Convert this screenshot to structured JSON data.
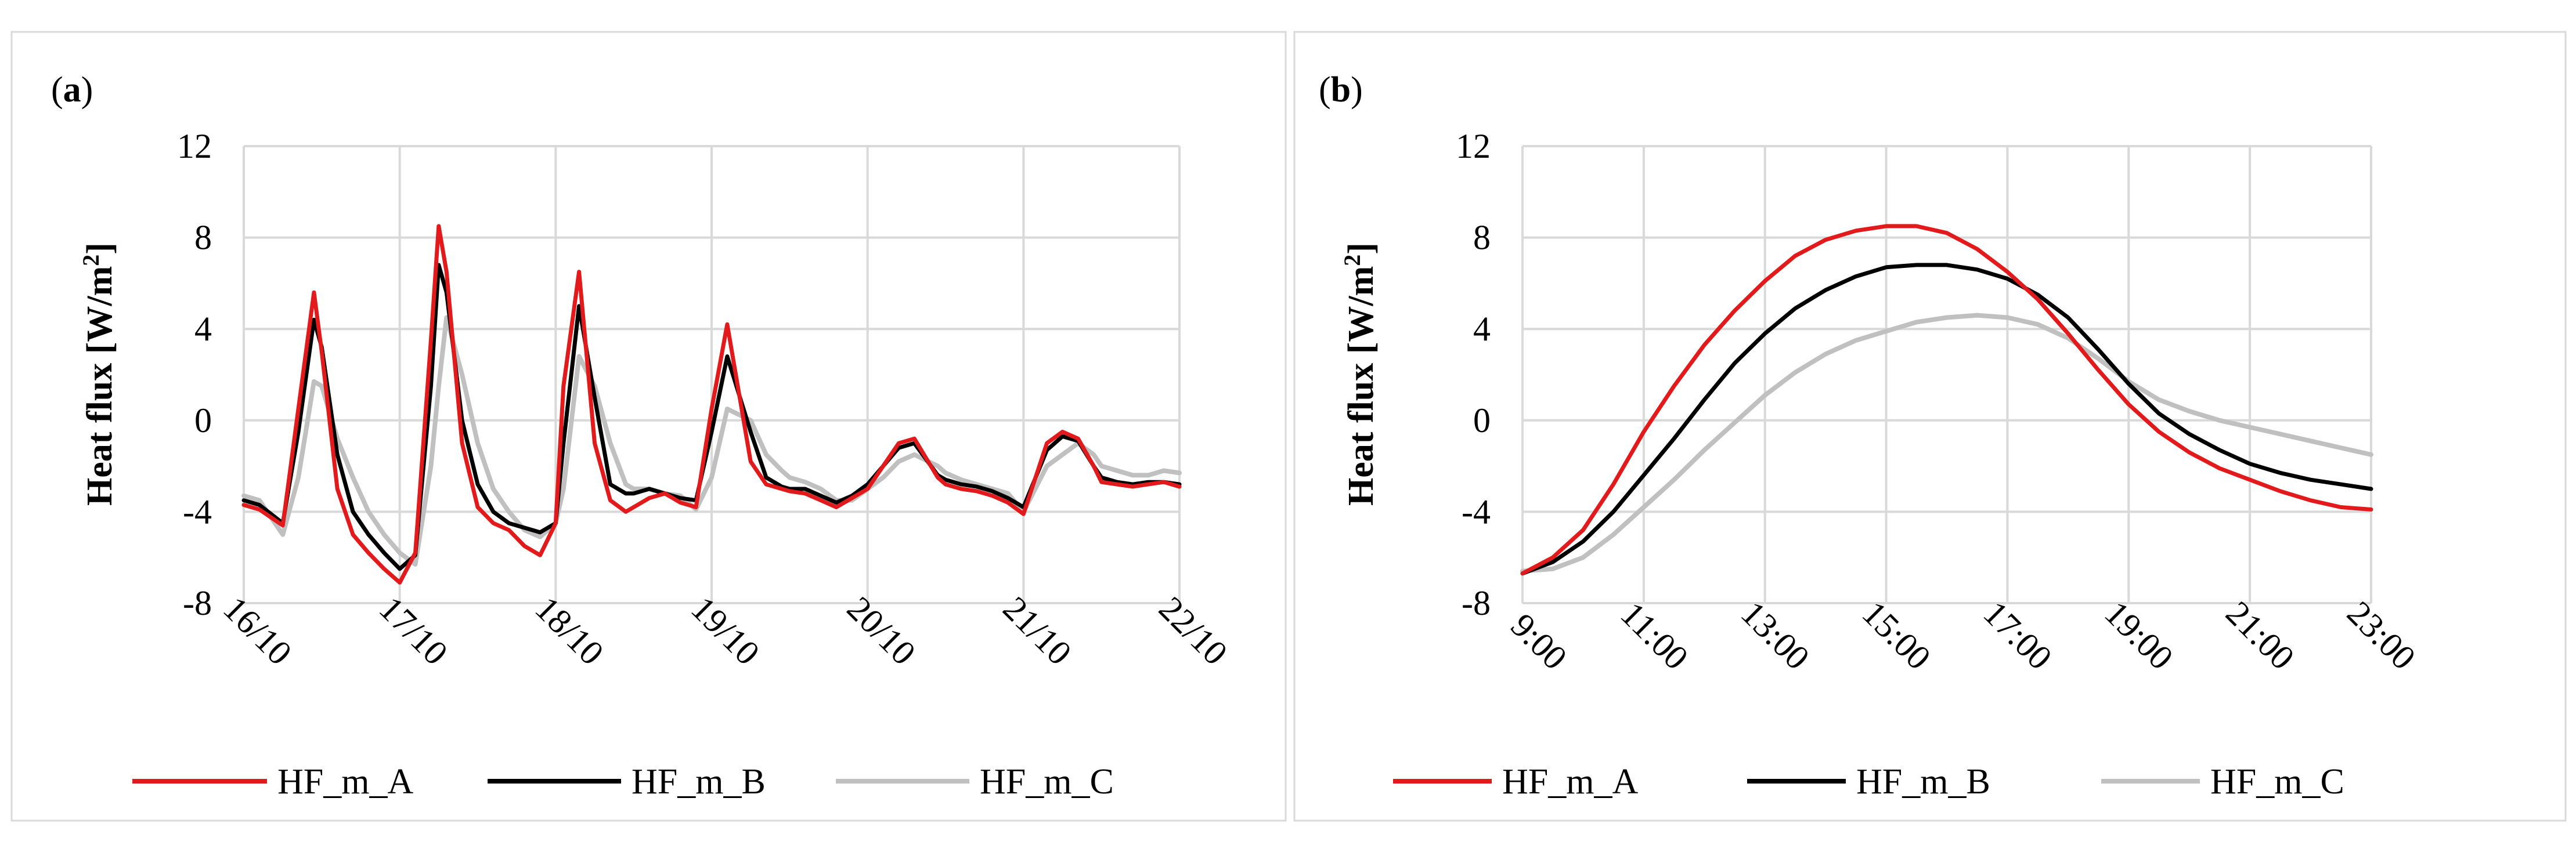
{
  "panels": [
    {
      "label": "(a)",
      "label_letter": "a",
      "ylabel": "Heat flux [W/m²]",
      "ylabel_main": "Heat flux [W/m",
      "ylabel_sup": "2",
      "ylabel_end": "]"
    },
    {
      "label": "(b)",
      "label_letter": "b",
      "ylabel": "Heat flux [W/m²]",
      "ylabel_main": "Heat flux [W/m",
      "ylabel_sup": "2",
      "ylabel_end": "]"
    }
  ],
  "colors": {
    "HF_m_A": "#e31a1c",
    "HF_m_B": "#000000",
    "HF_m_C": "#c0c0c0"
  },
  "chart_data": [
    {
      "type": "line",
      "title": "(a)",
      "xlabel": "",
      "ylabel": "Heat flux [W/m²]",
      "ylim": [
        -8,
        12
      ],
      "yticks": [
        -8,
        -4,
        0,
        4,
        8,
        12
      ],
      "xlim": [
        0,
        6
      ],
      "xtick_labels": [
        "16/10",
        "17/10",
        "18/10",
        "19/10",
        "20/10",
        "21/10",
        "22/10"
      ],
      "grid": true,
      "legend": "bottom",
      "series": [
        {
          "name": "HF_m_A",
          "x": [
            0,
            0.1,
            0.25,
            0.35,
            0.45,
            0.5,
            0.6,
            0.7,
            0.8,
            0.9,
            1.0,
            1.1,
            1.2,
            1.25,
            1.3,
            1.4,
            1.5,
            1.6,
            1.7,
            1.8,
            1.9,
            2.0,
            2.05,
            2.15,
            2.25,
            2.35,
            2.45,
            2.5,
            2.6,
            2.7,
            2.8,
            2.9,
            3.0,
            3.1,
            3.25,
            3.35,
            3.45,
            3.5,
            3.6,
            3.7,
            3.8,
            3.9,
            4.0,
            4.1,
            4.2,
            4.3,
            4.45,
            4.5,
            4.6,
            4.7,
            4.8,
            4.9,
            5.0,
            5.15,
            5.25,
            5.35,
            5.45,
            5.5,
            5.6,
            5.7,
            5.8,
            5.9,
            6.0
          ],
          "y": [
            -3.7,
            -3.9,
            -4.6,
            0.5,
            5.6,
            3.0,
            -3.0,
            -5.0,
            -5.8,
            -6.5,
            -7.1,
            -5.8,
            3.5,
            8.5,
            6.5,
            -1.0,
            -3.8,
            -4.5,
            -4.8,
            -5.5,
            -5.9,
            -4.5,
            1.5,
            6.5,
            -1.0,
            -3.5,
            -4.0,
            -3.8,
            -3.4,
            -3.2,
            -3.6,
            -3.8,
            0.5,
            4.2,
            -1.8,
            -2.8,
            -3.0,
            -3.1,
            -3.2,
            -3.5,
            -3.8,
            -3.4,
            -3.0,
            -2.0,
            -1.0,
            -0.8,
            -2.5,
            -2.8,
            -3.0,
            -3.1,
            -3.3,
            -3.6,
            -4.1,
            -1.0,
            -0.5,
            -0.8,
            -2.0,
            -2.7,
            -2.8,
            -2.9,
            -2.8,
            -2.7,
            -2.9
          ]
        },
        {
          "name": "HF_m_B",
          "x": [
            0,
            0.1,
            0.25,
            0.35,
            0.45,
            0.5,
            0.6,
            0.7,
            0.8,
            0.9,
            1.0,
            1.1,
            1.2,
            1.25,
            1.3,
            1.4,
            1.5,
            1.6,
            1.7,
            1.8,
            1.9,
            2.0,
            2.05,
            2.15,
            2.25,
            2.35,
            2.45,
            2.5,
            2.6,
            2.7,
            2.8,
            2.9,
            3.0,
            3.1,
            3.25,
            3.35,
            3.45,
            3.5,
            3.6,
            3.7,
            3.8,
            3.9,
            4.0,
            4.1,
            4.2,
            4.3,
            4.45,
            4.5,
            4.6,
            4.7,
            4.8,
            4.9,
            5.0,
            5.15,
            5.25,
            5.35,
            5.45,
            5.5,
            5.6,
            5.7,
            5.8,
            5.9,
            6.0
          ],
          "y": [
            -3.5,
            -3.7,
            -4.5,
            -0.5,
            4.4,
            3.2,
            -1.5,
            -4.0,
            -5.0,
            -5.8,
            -6.5,
            -5.9,
            1.5,
            6.8,
            5.6,
            0.0,
            -2.8,
            -4.0,
            -4.5,
            -4.7,
            -4.9,
            -4.5,
            -1.0,
            5.0,
            1.0,
            -2.8,
            -3.2,
            -3.2,
            -3.0,
            -3.2,
            -3.4,
            -3.5,
            -0.5,
            2.8,
            -0.5,
            -2.5,
            -2.9,
            -3.0,
            -3.0,
            -3.3,
            -3.6,
            -3.3,
            -2.8,
            -2.0,
            -1.2,
            -1.0,
            -2.4,
            -2.6,
            -2.8,
            -2.9,
            -3.1,
            -3.4,
            -3.8,
            -1.3,
            -0.7,
            -0.9,
            -2.0,
            -2.5,
            -2.7,
            -2.8,
            -2.7,
            -2.7,
            -2.8
          ]
        },
        {
          "name": "HF_m_C",
          "x": [
            0,
            0.1,
            0.25,
            0.35,
            0.45,
            0.5,
            0.6,
            0.7,
            0.8,
            0.9,
            1.0,
            1.1,
            1.2,
            1.25,
            1.3,
            1.4,
            1.5,
            1.6,
            1.7,
            1.8,
            1.9,
            2.0,
            2.05,
            2.15,
            2.25,
            2.35,
            2.45,
            2.5,
            2.6,
            2.7,
            2.8,
            2.9,
            3.0,
            3.1,
            3.25,
            3.35,
            3.45,
            3.5,
            3.6,
            3.7,
            3.8,
            3.9,
            4.0,
            4.1,
            4.2,
            4.3,
            4.45,
            4.5,
            4.6,
            4.7,
            4.8,
            4.9,
            5.0,
            5.15,
            5.25,
            5.35,
            5.45,
            5.5,
            5.6,
            5.7,
            5.8,
            5.9,
            6.0
          ],
          "y": [
            -3.3,
            -3.5,
            -5.0,
            -2.5,
            1.7,
            1.5,
            -0.8,
            -2.5,
            -4.0,
            -5.0,
            -5.8,
            -6.3,
            -2.0,
            1.5,
            4.5,
            2.0,
            -1.0,
            -3.0,
            -4.0,
            -4.8,
            -5.1,
            -4.5,
            -3.0,
            2.8,
            1.5,
            -1.0,
            -2.8,
            -3.0,
            -3.0,
            -3.2,
            -3.3,
            -3.9,
            -2.5,
            0.5,
            0.0,
            -1.5,
            -2.2,
            -2.5,
            -2.7,
            -3.0,
            -3.5,
            -3.5,
            -3.0,
            -2.5,
            -1.8,
            -1.5,
            -2.0,
            -2.3,
            -2.6,
            -2.8,
            -3.0,
            -3.2,
            -4.0,
            -2.0,
            -1.5,
            -1.0,
            -1.5,
            -2.0,
            -2.2,
            -2.4,
            -2.4,
            -2.2,
            -2.3
          ]
        }
      ]
    },
    {
      "type": "line",
      "title": "(b)",
      "xlabel": "",
      "ylabel": "Heat flux [W/m²]",
      "ylim": [
        -8,
        12
      ],
      "yticks": [
        -8,
        -4,
        0,
        4,
        8,
        12
      ],
      "xlim": [
        9,
        23
      ],
      "xtick_values": [
        9,
        11,
        13,
        15,
        17,
        19,
        21,
        23
      ],
      "xtick_labels": [
        "9:00",
        "11:00",
        "13:00",
        "15:00",
        "17:00",
        "19:00",
        "21:00",
        "23:00"
      ],
      "grid": true,
      "legend": "bottom",
      "series": [
        {
          "name": "HF_m_A",
          "x": [
            9.0,
            9.5,
            10.0,
            10.5,
            11.0,
            11.5,
            12.0,
            12.5,
            13.0,
            13.5,
            14.0,
            14.5,
            15.0,
            15.5,
            16.0,
            16.5,
            17.0,
            17.5,
            18.0,
            18.5,
            19.0,
            19.5,
            20.0,
            20.5,
            21.0,
            21.5,
            22.0,
            22.5,
            23.0
          ],
          "y": [
            -6.7,
            -6.0,
            -4.8,
            -2.8,
            -0.5,
            1.5,
            3.3,
            4.8,
            6.1,
            7.2,
            7.9,
            8.3,
            8.5,
            8.5,
            8.2,
            7.5,
            6.5,
            5.3,
            3.8,
            2.2,
            0.7,
            -0.5,
            -1.4,
            -2.1,
            -2.6,
            -3.1,
            -3.5,
            -3.8,
            -3.9
          ]
        },
        {
          "name": "HF_m_B",
          "x": [
            9.0,
            9.5,
            10.0,
            10.5,
            11.0,
            11.5,
            12.0,
            12.5,
            13.0,
            13.5,
            14.0,
            14.5,
            15.0,
            15.5,
            16.0,
            16.5,
            17.0,
            17.5,
            18.0,
            18.5,
            19.0,
            19.5,
            20.0,
            20.5,
            21.0,
            21.5,
            22.0,
            22.5,
            23.0
          ],
          "y": [
            -6.7,
            -6.2,
            -5.3,
            -4.0,
            -2.4,
            -0.8,
            0.9,
            2.5,
            3.8,
            4.9,
            5.7,
            6.3,
            6.7,
            6.8,
            6.8,
            6.6,
            6.2,
            5.5,
            4.5,
            3.1,
            1.6,
            0.3,
            -0.6,
            -1.3,
            -1.9,
            -2.3,
            -2.6,
            -2.8,
            -3.0
          ]
        },
        {
          "name": "HF_m_C",
          "x": [
            9.0,
            9.5,
            10.0,
            10.5,
            11.0,
            11.5,
            12.0,
            12.5,
            13.0,
            13.5,
            14.0,
            14.5,
            15.0,
            15.5,
            16.0,
            16.5,
            17.0,
            17.5,
            18.0,
            18.5,
            19.0,
            19.5,
            20.0,
            20.5,
            21.0,
            21.5,
            22.0,
            22.5,
            23.0
          ],
          "y": [
            -6.6,
            -6.5,
            -6.0,
            -5.0,
            -3.8,
            -2.6,
            -1.3,
            -0.1,
            1.1,
            2.1,
            2.9,
            3.5,
            3.9,
            4.3,
            4.5,
            4.6,
            4.5,
            4.2,
            3.6,
            2.7,
            1.7,
            0.9,
            0.4,
            0.0,
            -0.3,
            -0.6,
            -0.9,
            -1.2,
            -1.5
          ]
        }
      ]
    }
  ]
}
